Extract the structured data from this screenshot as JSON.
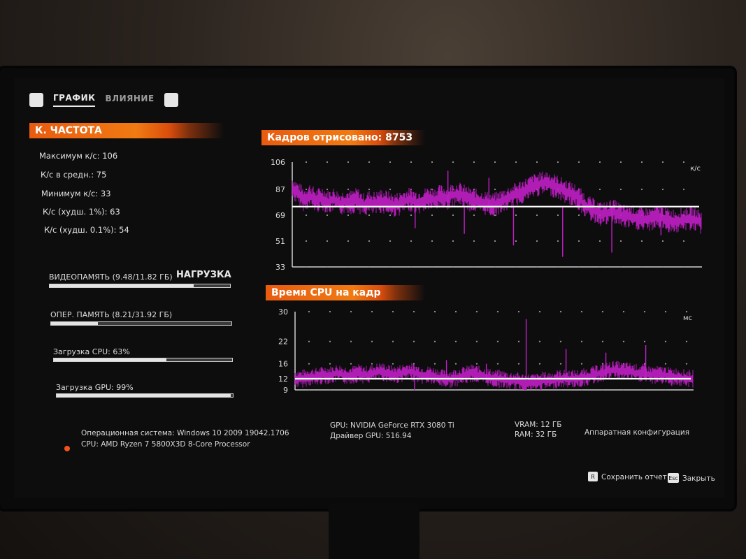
{
  "tabs": {
    "left_key": "",
    "graph": "ГРАФИК",
    "influence": "ВЛИЯНИЕ",
    "right_key": ""
  },
  "fps_section": {
    "title": "К. ЧАСТОТА",
    "stats": [
      "Максимум к/с: 106",
      "К/с в средн.: 75",
      "Минимум к/с: 33",
      "К/с (худш. 1%): 63",
      "К/с (худш. 0.1%): 54"
    ]
  },
  "load": {
    "title": "НАГРУЗКА",
    "bars": [
      {
        "label": "ВИДЕОПАМЯТЬ (9.48/11.82 ГБ)",
        "fraction": 0.8
      },
      {
        "label": "ОПЕР. ПАМЯТЬ (8.21/31.92 ГБ)",
        "fraction": 0.26
      },
      {
        "label": "Загрузка CPU: 63%",
        "fraction": 0.63
      },
      {
        "label": "Загрузка GPU: 99%",
        "fraction": 0.99
      }
    ]
  },
  "system": {
    "os": "Операционная система: Windows 10 2009 19042.1706",
    "cpu": "CPU: AMD Ryzen 7 5800X3D 8-Core Processor",
    "gpu": "GPU: NVIDIA GeForce RTX 3080 Ti",
    "driver": "Драйвер GPU: 516.94",
    "vram": "VRAM: 12 ГБ",
    "ram": "RAM: 32 ГБ",
    "hw_config": "Аппаратная конфигурация"
  },
  "footer": {
    "save_key": "R",
    "save_label": "Сохранить отчет",
    "close_key": "Esc",
    "close_label": "Закрыть"
  },
  "colors": {
    "accent": "#ee6a12",
    "series": "#c21fc7",
    "average": "#ffffff"
  },
  "chart_data": [
    {
      "type": "line",
      "title": "Кадров отрисовано: 8753",
      "unit_label": "к/с",
      "y_ticks": [
        106,
        87,
        69,
        51,
        33
      ],
      "ylim": [
        33,
        106
      ],
      "average": 75,
      "series": [
        {
          "values": [
            88,
            84,
            80,
            83,
            79,
            81,
            78,
            80,
            77,
            79,
            78,
            80,
            76,
            78,
            77,
            79,
            78,
            76,
            77,
            79,
            80,
            78,
            79,
            81,
            80,
            82,
            81,
            83,
            84,
            82,
            80,
            79,
            78,
            77,
            76,
            78,
            80,
            82,
            84,
            86,
            88,
            90,
            91,
            92,
            90,
            88,
            86,
            84,
            82,
            78,
            74,
            72,
            70,
            70,
            72,
            70,
            68,
            68,
            67,
            66,
            66,
            67,
            68,
            66,
            65,
            65,
            66,
            67,
            66,
            64
          ]
        }
      ],
      "spikes_down": [
        60,
        56,
        48,
        40,
        43,
        55
      ],
      "spikes_up": [
        100,
        95
      ]
    },
    {
      "type": "line",
      "title": "Время CPU на кадр",
      "unit_label": "мс",
      "y_ticks": [
        30,
        22,
        16,
        12,
        9
      ],
      "ylim": [
        9,
        30
      ],
      "average": 12,
      "series": [
        {
          "values": [
            12,
            12,
            12.5,
            12.5,
            13,
            13,
            13.5,
            13,
            13,
            13.5,
            13,
            13.5,
            14,
            13.5,
            13,
            13.5,
            14,
            13.5,
            13,
            13,
            12.5,
            12,
            12,
            12.5,
            13,
            13.5,
            13,
            12.5,
            12,
            12,
            11.5,
            11.5,
            11,
            11,
            11,
            11.5,
            11.5,
            12,
            12,
            12,
            12,
            12.5,
            13,
            13.5,
            14,
            14.5,
            14,
            14,
            13.5,
            13.5,
            13,
            13,
            13,
            12.5,
            12.5,
            12,
            12
          ]
        }
      ],
      "spikes_up": [
        17,
        16,
        28,
        20,
        19,
        21
      ],
      "spikes_down": [
        9
      ]
    }
  ]
}
